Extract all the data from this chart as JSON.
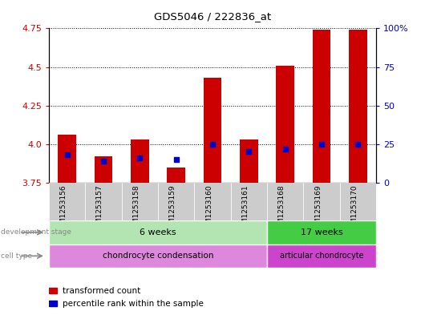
{
  "title": "GDS5046 / 222836_at",
  "samples": [
    "GSM1253156",
    "GSM1253157",
    "GSM1253158",
    "GSM1253159",
    "GSM1253160",
    "GSM1253161",
    "GSM1253168",
    "GSM1253169",
    "GSM1253170"
  ],
  "transformed_counts": [
    4.06,
    3.92,
    4.03,
    3.85,
    4.43,
    4.03,
    4.51,
    4.74,
    4.74
  ],
  "percentile_ranks": [
    18,
    14,
    16,
    15,
    25,
    20,
    22,
    25,
    25
  ],
  "ymin": 3.75,
  "ymax": 4.75,
  "y_ticks": [
    3.75,
    4.0,
    4.25,
    4.5,
    4.75
  ],
  "y_right_ticks": [
    0,
    25,
    50,
    75,
    100
  ],
  "bar_color": "#cc0000",
  "percentile_color": "#0000cc",
  "background_color": "#ffffff",
  "plot_bg": "#ffffff",
  "tick_label_color_left": "#cc0000",
  "tick_label_color_right": "#0000cc",
  "dev_stage_6w_label": "6 weeks",
  "dev_stage_17w_label": "17 weeks",
  "cell_type_chondro_label": "chondrocyte condensation",
  "cell_type_articular_label": "articular chondrocyte",
  "dev_stage_6w_color": "#b2e5b2",
  "dev_stage_17w_color": "#44cc44",
  "cell_type_chondro_color": "#dd88dd",
  "cell_type_articular_color": "#cc44cc",
  "legend_bar_label": "transformed count",
  "legend_pct_label": "percentile rank within the sample",
  "bar_width": 0.5,
  "sample_bg_color": "#cccccc",
  "row_label_color": "#888888",
  "n_6w": 6,
  "n_17w": 3
}
